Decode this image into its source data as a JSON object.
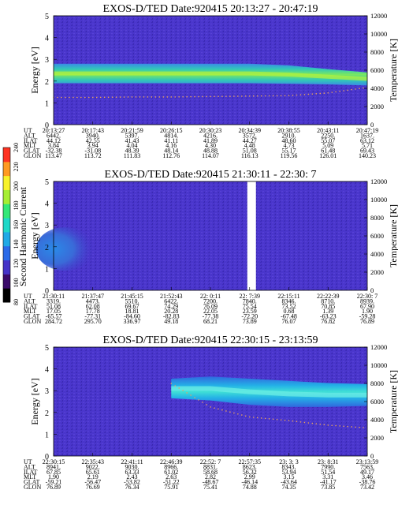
{
  "colorbar": {
    "label": "Second Harmonic Current",
    "ticks": [
      "80",
      "100",
      "120",
      "140",
      "160",
      "180",
      "200",
      "220",
      "240"
    ],
    "colors": [
      "#000000",
      "#3a0a6a",
      "#4433c8",
      "#2a6ae8",
      "#1fa9e6",
      "#1fd8c8",
      "#33e878",
      "#a6ee33",
      "#f8f22a",
      "#ff9a22",
      "#ff3322"
    ]
  },
  "row_labels": [
    "UT",
    "ALT",
    "ILAT",
    "MLT",
    "GLAT",
    "GLON"
  ],
  "panels": [
    {
      "title": "EXOS-D/TED  Date:920415  20:13:27 - 20:47:19",
      "y_left_label": "Energy [eV]",
      "y_right_label": "Temperature [K]",
      "y_left_ticks": [
        "0",
        "1",
        "2",
        "3",
        "4",
        "5"
      ],
      "y_right_ticks": [
        "0",
        "2000",
        "4000",
        "6000",
        "8000",
        "10000",
        "12000"
      ],
      "columns": [
        [
          "20:13:27",
          "6442.",
          "44.12",
          "3.84",
          "-32.38",
          "113.47"
        ],
        [
          "20:17:43",
          "3940.",
          "42.55",
          "3.94",
          "-31.08",
          "113.72"
        ],
        [
          "20:21:59",
          "5397.",
          "41.43",
          "4.04",
          "48.39",
          "111.83"
        ],
        [
          "20:26:15",
          "4814.",
          "41.11",
          "4.16",
          "48.14",
          "112.76"
        ],
        [
          "20:30:23",
          "4216.",
          "41.89",
          "4.30",
          "48.88",
          "114.07"
        ],
        [
          "20:34:39",
          "3572.",
          "44.27",
          "4.48",
          "51.08",
          "116.13"
        ],
        [
          "20:38:55",
          "2910.",
          "48.60",
          "4.73",
          "55.17",
          "119.56"
        ],
        [
          "20:43:11",
          "2250.",
          "55.07",
          "5.09",
          "61.48",
          "126.01"
        ],
        [
          "20:47:19",
          "1637.",
          "63.12",
          "5.71",
          "69.43",
          "140.23"
        ]
      ]
    },
    {
      "title": "EXOS-D/TED   Date:920415  21:30:11 - 22:30: 7",
      "y_left_label": "Energy [eV]",
      "y_right_label": "Temperature [K]",
      "y_left_ticks": [
        "0",
        "1",
        "2",
        "3",
        "4",
        "5"
      ],
      "y_right_ticks": [
        "0",
        "2000",
        "4000",
        "6000",
        "8000",
        "10000",
        "12000"
      ],
      "columns": [
        [
          "21:30:11",
          "3319.",
          "51.08",
          "17.05",
          "-65.57",
          "284.72"
        ],
        [
          "21:37:47",
          "4473.",
          "62.08",
          "17.78",
          "-77.31",
          "295.70"
        ],
        [
          "21:45:15",
          "5510.",
          "69.67",
          "18.81",
          "-84.60",
          "336.97"
        ],
        [
          "21:52:43",
          "6422.",
          "74.29",
          "20.28",
          "-82.83",
          "49.18"
        ],
        [
          "22: 0:11",
          "7200.",
          "76.09",
          "22.05",
          "-77.38",
          "68.21"
        ],
        [
          "22: 7:39",
          "7840.",
          "75.54",
          "23.59",
          "-72.20",
          "73.89"
        ],
        [
          "22:15:11",
          "8346.",
          "73.52",
          "0.68",
          "-67.48",
          "76.07"
        ],
        [
          "22:22:39",
          "8710.",
          "70.85",
          "1.39",
          "-63.23",
          "76.82"
        ],
        [
          "22:30: 7",
          "8939.",
          "67.90",
          "1.90",
          "-59.28",
          "76.89"
        ]
      ]
    },
    {
      "title": "EXOS-D/TED   Date:920415  22:30:15 - 23:13:59",
      "y_left_label": "Energy [eV]",
      "y_right_label": "Temperature [K]",
      "y_left_ticks": [
        "0",
        "1",
        "2",
        "3",
        "4",
        "5"
      ],
      "y_right_ticks": [
        "0",
        "2000",
        "4000",
        "6000",
        "8000",
        "10000",
        "12000"
      ],
      "columns": [
        [
          "22:30:15",
          "8941.",
          "67.85",
          "1.90",
          "-59.21",
          "76.89"
        ],
        [
          "22:35:43",
          "9022.",
          "65.61",
          "2.19",
          "-56.47",
          "76.69"
        ],
        [
          "22:41:11",
          "9030.",
          "63.33",
          "2.43",
          "-53.82",
          "76.34"
        ],
        [
          "22:46:39",
          "8966.",
          "61.02",
          "2.63",
          "-51.22",
          "75.91"
        ],
        [
          "22:52: 7",
          "8831.",
          "58.68",
          "2.82",
          "-48.67",
          "75.41"
        ],
        [
          "22:57:35",
          "8623.",
          "56.32",
          "2.99",
          "-46.14",
          "74.88"
        ],
        [
          "23: 3: 3",
          "8343.",
          "53.94",
          "3.15",
          "-43.64",
          "74.35"
        ],
        [
          "23: 8:31",
          "7990.",
          "51.54",
          "3.31",
          "-41.17",
          "73.85"
        ],
        [
          "23:13:59",
          "7563.",
          "49.17",
          "3.46",
          "-38.76",
          "73.42"
        ]
      ]
    }
  ],
  "chart_data": [
    {
      "type": "heatmap",
      "title": "EXOS-D/TED  Date:920415  20:13:27 - 20:47:19",
      "xlabel": "UT",
      "ylabel": "Energy [eV]",
      "y2label": "Temperature [K]",
      "ylim": [
        0,
        5
      ],
      "y2lim": [
        0,
        12000
      ],
      "band": {
        "x": [
          "20:13:27",
          "20:17:43",
          "20:21:59",
          "20:26:15",
          "20:30:23",
          "20:34:39",
          "20:38:55",
          "20:43:11",
          "20:47:19"
        ],
        "center": [
          2.35,
          2.35,
          2.35,
          2.35,
          2.35,
          2.35,
          2.3,
          2.2,
          2.1
        ],
        "halfwidth": [
          0.45,
          0.45,
          0.45,
          0.45,
          0.45,
          0.45,
          0.42,
          0.35,
          0.3
        ]
      },
      "temperature": {
        "x": [
          "20:13:27",
          "20:17:43",
          "20:21:59",
          "20:26:15",
          "20:30:23",
          "20:34:39",
          "20:38:55",
          "20:43:11",
          "20:47:19"
        ],
        "values": [
          3000,
          3000,
          3050,
          3050,
          3100,
          3150,
          3200,
          3500,
          4100
        ]
      }
    },
    {
      "type": "heatmap",
      "title": "EXOS-D/TED   Date:920415  21:30:11 - 22:30: 7",
      "xlabel": "UT",
      "ylabel": "Energy [eV]",
      "y2label": "Temperature [K]",
      "ylim": [
        0,
        5
      ],
      "y2lim": [
        0,
        12000
      ],
      "blob": {
        "x": [
          "21:30:11",
          "21:37:47"
        ],
        "energy": [
          1.2,
          2.6
        ]
      },
      "data_gap": {
        "x": [
          "22: 7:39",
          "22:15:11"
        ]
      },
      "temperature": {
        "x": [],
        "values": []
      }
    },
    {
      "type": "heatmap",
      "title": "EXOS-D/TED   Date:920415  22:30:15 - 23:13:59",
      "xlabel": "UT",
      "ylabel": "Energy [eV]",
      "y2label": "Temperature [K]",
      "ylim": [
        0,
        5
      ],
      "y2lim": [
        0,
        12000
      ],
      "band": {
        "x": [
          "22:46:39",
          "22:52: 7",
          "22:57:35",
          "23: 3: 3",
          "23: 8:31",
          "23:13:59"
        ],
        "center": [
          3.1,
          3.1,
          2.95,
          2.85,
          2.8,
          2.8
        ],
        "halfwidth": [
          0.45,
          0.55,
          0.6,
          0.6,
          0.55,
          0.5
        ]
      },
      "temperature": {
        "x": [
          "22:46:39",
          "22:52: 7",
          "22:57:35",
          "23: 3: 3",
          "23: 8:31",
          "23:13:59"
        ],
        "values": [
          8000,
          5400,
          4300,
          3900,
          3400,
          3100
        ]
      }
    }
  ]
}
